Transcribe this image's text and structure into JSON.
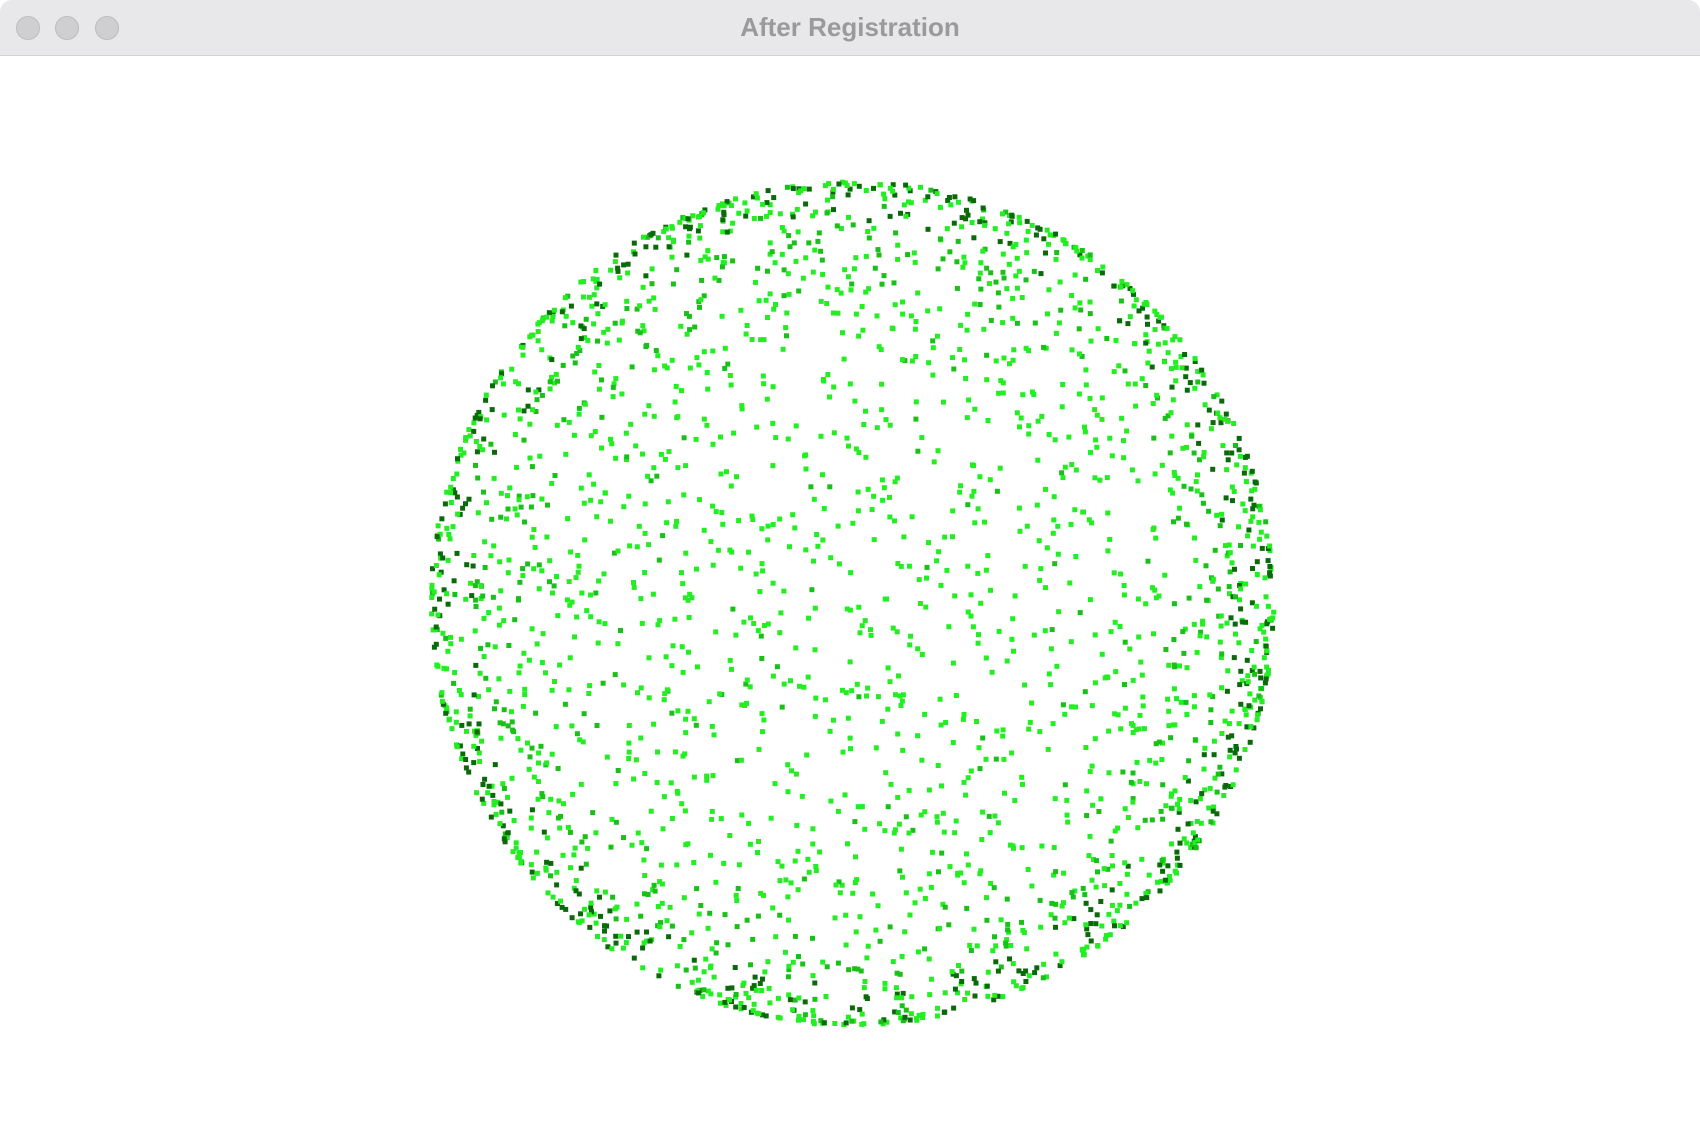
{
  "window": {
    "title": "After Registration",
    "controls": [
      "close-button",
      "minimize-button",
      "zoom-button"
    ]
  },
  "viewport": {
    "background": "#ffffff",
    "point_cloud": {
      "shape": "sphere",
      "colors": {
        "bright": "#22ee22",
        "mid": "#18c018",
        "dark": "#0a6a0a"
      }
    }
  }
}
